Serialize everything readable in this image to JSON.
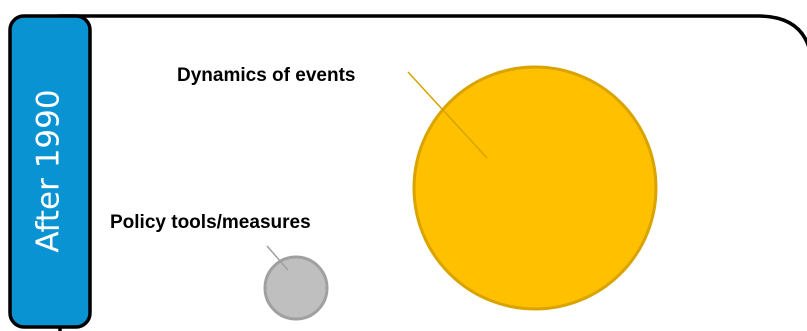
{
  "side_panel": {
    "label": "After 1990",
    "color": "#0A93D2"
  },
  "frame": {
    "border_color": "#000000"
  },
  "bubbles": {
    "events": {
      "label": "Dynamics of events",
      "fill": "#FFC000",
      "stroke": "#D9A300"
    },
    "policy": {
      "label": "Policy tools/measures",
      "fill": "#BFBFBF",
      "stroke": "#A0A0A0"
    }
  }
}
